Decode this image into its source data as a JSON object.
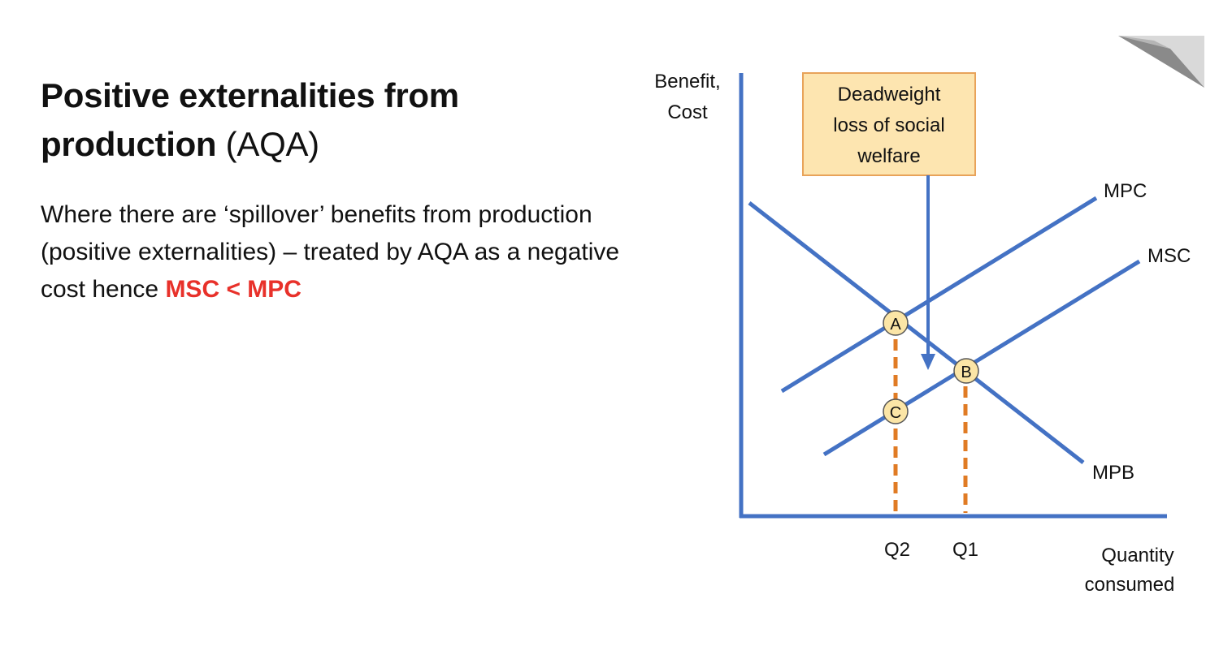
{
  "title": {
    "bold": "Positive externalities from production",
    "suffix": "(AQA)"
  },
  "body": {
    "text": "Where there are ‘spillover’ benefits from production (positive externalities) – treated by AQA as a negative cost hence ",
    "highlight": "MSC < MPC"
  },
  "diagram": {
    "y_axis_label_line1": "Benefit,",
    "y_axis_label_line2": "Cost",
    "x_axis_label_line1": "Quantity",
    "x_axis_label_line2": "consumed",
    "callout": {
      "line1": "Deadweight",
      "line2": "loss of social",
      "line3": "welfare"
    },
    "curves": {
      "mpc": "MPC",
      "msc": "MSC",
      "mpb": "MPB"
    },
    "points": {
      "a": "A",
      "b": "B",
      "c": "C"
    },
    "ticks": {
      "q2": "Q2",
      "q1": "Q1"
    },
    "colors": {
      "curve": "#4472c4",
      "dashed": "#e07b24",
      "point_fill": "#fbe5a6",
      "callout_fill": "#fde5b0",
      "callout_border": "#e8a35a",
      "highlight": "#e8312a"
    }
  }
}
